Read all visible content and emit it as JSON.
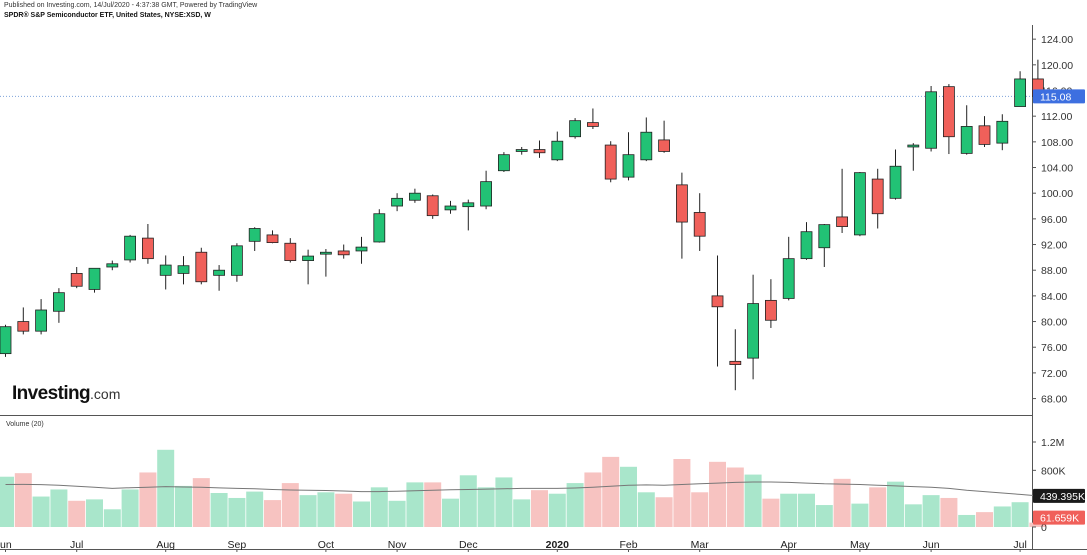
{
  "header": {
    "published": "Published on Investing.com, 14/Jul/2020 - 4:37:38 GMT, Powered by TradingView",
    "symbol": "SPDR® S&P Semiconductor ETF, United States, NYSE:XSD, W"
  },
  "logo": {
    "main": "Investing",
    "suffix": ".com"
  },
  "colors": {
    "up": "#22c275",
    "down": "#f0605a",
    "volume_up": "#a9e6cb",
    "volume_down": "#f7c3c1",
    "last_price_tag": "#3d6fe0",
    "volume_tag": "#1a1a1a",
    "down_tag": "#f0605a",
    "ma_line": "#777777"
  },
  "chart_data": [
    {
      "type": "candlestick",
      "title": "SPDR® S&P Semiconductor ETF, United States, NYSE:XSD, W",
      "interval": "W",
      "ylim": [
        66,
        126
      ],
      "y_ticks": [
        "68.00",
        "72.00",
        "76.00",
        "80.00",
        "84.00",
        "88.00",
        "92.00",
        "96.00",
        "100.00",
        "104.00",
        "108.00",
        "112.00",
        "116.00",
        "120.00",
        "124.00"
      ],
      "x_labels": [
        {
          "label": "un",
          "index": 0
        },
        {
          "label": "Jul",
          "index": 4
        },
        {
          "label": "Aug",
          "index": 9
        },
        {
          "label": "Sep",
          "index": 13
        },
        {
          "label": "Oct",
          "index": 18
        },
        {
          "label": "Nov",
          "index": 22
        },
        {
          "label": "Dec",
          "index": 26
        },
        {
          "label": "2020",
          "index": 31
        },
        {
          "label": "Feb",
          "index": 35
        },
        {
          "label": "Mar",
          "index": 39
        },
        {
          "label": "Apr",
          "index": 44
        },
        {
          "label": "May",
          "index": 48
        },
        {
          "label": "Jun",
          "index": 52
        },
        {
          "label": "Jul",
          "index": 57
        }
      ],
      "last_price": "115.08",
      "last_value": 115.08,
      "candles": [
        {
          "o": 75,
          "h": 79.5,
          "l": 74.5,
          "c": 79.2
        },
        {
          "o": 80,
          "h": 82.2,
          "l": 78,
          "c": 78.5
        },
        {
          "o": 78.5,
          "h": 83.5,
          "l": 78,
          "c": 81.8
        },
        {
          "o": 81.6,
          "h": 85.2,
          "l": 79.8,
          "c": 84.5
        },
        {
          "o": 87.5,
          "h": 88.5,
          "l": 85.2,
          "c": 85.5
        },
        {
          "o": 85,
          "h": 88.3,
          "l": 84.5,
          "c": 88.3
        },
        {
          "o": 88.5,
          "h": 89.5,
          "l": 88,
          "c": 89
        },
        {
          "o": 89.6,
          "h": 93.5,
          "l": 89.2,
          "c": 93.3
        },
        {
          "o": 93,
          "h": 95.2,
          "l": 89,
          "c": 89.8
        },
        {
          "o": 87.2,
          "h": 90.3,
          "l": 85,
          "c": 88.8
        },
        {
          "o": 87.5,
          "h": 90.2,
          "l": 85.8,
          "c": 88.7
        },
        {
          "o": 90.8,
          "h": 91.5,
          "l": 85.8,
          "c": 86.2
        },
        {
          "o": 87.2,
          "h": 88.8,
          "l": 84.8,
          "c": 88
        },
        {
          "o": 87.2,
          "h": 92.2,
          "l": 86.2,
          "c": 91.8
        },
        {
          "o": 92.5,
          "h": 94.7,
          "l": 91,
          "c": 94.5
        },
        {
          "o": 93.5,
          "h": 94.2,
          "l": 92.2,
          "c": 92.3
        },
        {
          "o": 92.2,
          "h": 93,
          "l": 89.2,
          "c": 89.5
        },
        {
          "o": 89.5,
          "h": 91.2,
          "l": 85.8,
          "c": 90.2
        },
        {
          "o": 90.5,
          "h": 91.3,
          "l": 87,
          "c": 90.8
        },
        {
          "o": 91,
          "h": 92,
          "l": 89.8,
          "c": 90.4
        },
        {
          "o": 91,
          "h": 93.2,
          "l": 89,
          "c": 91.6
        },
        {
          "o": 92.4,
          "h": 97.5,
          "l": 92.3,
          "c": 96.8
        },
        {
          "o": 98,
          "h": 100,
          "l": 97.2,
          "c": 99.2
        },
        {
          "o": 98.9,
          "h": 100.7,
          "l": 98.5,
          "c": 100
        },
        {
          "o": 99.6,
          "h": 99.8,
          "l": 96,
          "c": 96.5
        },
        {
          "o": 97.4,
          "h": 98.8,
          "l": 96.8,
          "c": 98
        },
        {
          "o": 97.9,
          "h": 99,
          "l": 94.2,
          "c": 98.5
        },
        {
          "o": 98,
          "h": 103.5,
          "l": 97.5,
          "c": 101.8
        },
        {
          "o": 103.5,
          "h": 106.4,
          "l": 103.3,
          "c": 106
        },
        {
          "o": 106.5,
          "h": 107.2,
          "l": 106,
          "c": 106.8
        },
        {
          "o": 106.8,
          "h": 108.2,
          "l": 105.5,
          "c": 106.3
        },
        {
          "o": 105.2,
          "h": 109.6,
          "l": 105,
          "c": 108.1
        },
        {
          "o": 108.8,
          "h": 111.7,
          "l": 108.5,
          "c": 111.3
        },
        {
          "o": 111,
          "h": 113.2,
          "l": 110,
          "c": 110.4
        },
        {
          "o": 107.5,
          "h": 108.1,
          "l": 101.7,
          "c": 102.2
        },
        {
          "o": 102.5,
          "h": 109.5,
          "l": 102,
          "c": 106
        },
        {
          "o": 105.2,
          "h": 111.8,
          "l": 105,
          "c": 109.5
        },
        {
          "o": 108.3,
          "h": 111.3,
          "l": 106.3,
          "c": 106.5
        },
        {
          "o": 101.3,
          "h": 103.2,
          "l": 89.8,
          "c": 95.5
        },
        {
          "o": 97,
          "h": 100,
          "l": 91,
          "c": 93.3
        },
        {
          "o": 84,
          "h": 90.3,
          "l": 73,
          "c": 82.3
        },
        {
          "o": 73.8,
          "h": 78.8,
          "l": 69.3,
          "c": 73.3
        },
        {
          "o": 74.3,
          "h": 87.3,
          "l": 71,
          "c": 82.8
        },
        {
          "o": 83.3,
          "h": 86.6,
          "l": 79,
          "c": 80.2
        },
        {
          "o": 83.6,
          "h": 93.2,
          "l": 83.3,
          "c": 89.8
        },
        {
          "o": 89.8,
          "h": 95.5,
          "l": 89.6,
          "c": 94
        },
        {
          "o": 91.5,
          "h": 95.2,
          "l": 88.5,
          "c": 95.1
        },
        {
          "o": 96.3,
          "h": 103.8,
          "l": 93.8,
          "c": 94.8
        },
        {
          "o": 93.5,
          "h": 103.3,
          "l": 93.3,
          "c": 103.2
        },
        {
          "o": 102.2,
          "h": 103.8,
          "l": 94.5,
          "c": 96.8
        },
        {
          "o": 99.2,
          "h": 106.8,
          "l": 99,
          "c": 104.2
        },
        {
          "o": 107.2,
          "h": 107.8,
          "l": 103.5,
          "c": 107.5
        },
        {
          "o": 107,
          "h": 116.7,
          "l": 106.5,
          "c": 115.8
        },
        {
          "o": 116.6,
          "h": 117,
          "l": 106.1,
          "c": 108.8
        },
        {
          "o": 106.2,
          "h": 113.7,
          "l": 106,
          "c": 110.4
        },
        {
          "o": 110.5,
          "h": 112,
          "l": 107.2,
          "c": 107.6
        },
        {
          "o": 107.8,
          "h": 112.3,
          "l": 106.7,
          "c": 111.2
        },
        {
          "o": 113.5,
          "h": 119,
          "l": 113.5,
          "c": 117.8
        },
        {
          "o": 117.8,
          "h": 120.8,
          "l": 115,
          "c": 115.1
        }
      ]
    },
    {
      "type": "bar",
      "title": "Volume (20)",
      "ylim": [
        0,
        1200000
      ],
      "y_ticks": [
        "0",
        "400K",
        "800K",
        "1.2M"
      ],
      "last_value_label": "61.659K",
      "ma_label": "439.395K",
      "ma_value": 439395,
      "values": [
        710000,
        760000,
        430000,
        530000,
        370000,
        390000,
        250000,
        530000,
        770000,
        1090000,
        580000,
        690000,
        480000,
        410000,
        500000,
        380000,
        620000,
        450000,
        490000,
        470000,
        360000,
        560000,
        370000,
        630000,
        630000,
        400000,
        730000,
        560000,
        700000,
        390000,
        520000,
        470000,
        620000,
        770000,
        990000,
        850000,
        490000,
        420000,
        960000,
        490000,
        920000,
        840000,
        740000,
        400000,
        470000,
        470000,
        310000,
        680000,
        330000,
        560000,
        640000,
        320000,
        450000,
        410000,
        170000,
        210000,
        290000,
        350000,
        61659
      ],
      "ma": [
        600000,
        602000,
        598000,
        590000,
        575000,
        560000,
        545000,
        555000,
        560000,
        570000,
        565000,
        560000,
        552000,
        545000,
        540000,
        530000,
        522000,
        520000,
        515000,
        508000,
        500000,
        500000,
        505000,
        512000,
        520000,
        525000,
        530000,
        535000,
        540000,
        545000,
        545000,
        545000,
        550000,
        560000,
        575000,
        590000,
        595000,
        590000,
        600000,
        610000,
        620000,
        630000,
        635000,
        635000,
        630000,
        620000,
        610000,
        605000,
        600000,
        590000,
        580000,
        570000,
        560000,
        545000,
        520000,
        500000,
        480000,
        460000,
        439395
      ]
    }
  ]
}
